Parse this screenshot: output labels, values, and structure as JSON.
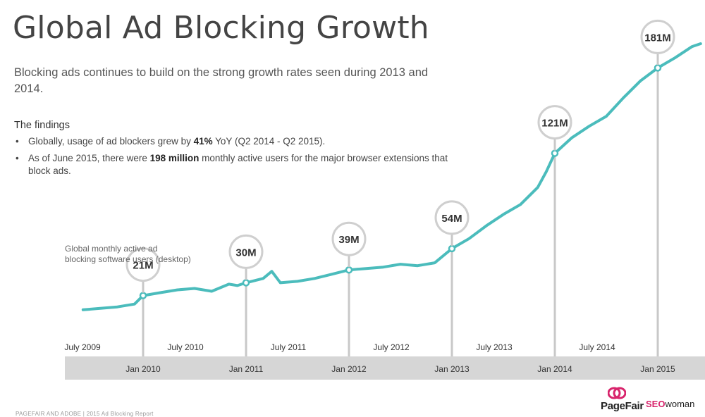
{
  "slide": {
    "title": "Global Ad Blocking Growth",
    "subtitle": "Blocking ads continues to build on the strong growth rates seen during 2013 and 2014.",
    "findings_heading": "The findings",
    "findings": [
      {
        "pre": "Globally, usage of ad blockers grew by ",
        "bold": "41%",
        "post": " YoY (Q2 2014 - Q2 2015)."
      },
      {
        "pre": "As of June 2015, there were ",
        "bold": "198 million",
        "post": " monthly active users for the major browser extensions that block ads."
      }
    ],
    "footer": "PAGEFAIR AND ADOBE | 2015 Ad Blocking Report",
    "logo_pagefair": "PageFair",
    "logo_seowoman_seo": "SEO",
    "logo_seowoman_rest": "woman"
  },
  "colors": {
    "line": "#4bbcbc",
    "axis_band": "#d6d6d6",
    "callout_border": "#cfcfcf",
    "drop_line": "#c8c8c8",
    "brand_red": "#d8246c"
  },
  "chart_data": {
    "type": "line",
    "annotation_text": [
      "Global monthly active ad",
      "blocking software users (desktop)"
    ],
    "x_range": [
      "2009-06",
      "2015-07"
    ],
    "x_upper_ticks": [
      "July 2009",
      "July 2010",
      "July 2011",
      "July 2012",
      "July 2013",
      "July 2014"
    ],
    "x_lower_ticks": [
      "Jan 2010",
      "Jan 2011",
      "Jan 2012",
      "Jan 2013",
      "Jan 2014",
      "Jan 2015"
    ],
    "y_unit": "millions",
    "y_range": [
      0,
      200
    ],
    "grid": false,
    "series": [
      {
        "points": [
          [
            "2009-06",
            11
          ],
          [
            "2009-08",
            12
          ],
          [
            "2009-10",
            13
          ],
          [
            "2009-12",
            15
          ],
          [
            "2010-01",
            21
          ],
          [
            "2010-03",
            23
          ],
          [
            "2010-05",
            25
          ],
          [
            "2010-07",
            26
          ],
          [
            "2010-09",
            24
          ],
          [
            "2010-11",
            29
          ],
          [
            "2010-12",
            28
          ],
          [
            "2011-01",
            30
          ],
          [
            "2011-03",
            33
          ],
          [
            "2011-04",
            38
          ],
          [
            "2011-05",
            30
          ],
          [
            "2011-07",
            31
          ],
          [
            "2011-09",
            33
          ],
          [
            "2011-11",
            36
          ],
          [
            "2012-01",
            39
          ],
          [
            "2012-03",
            40
          ],
          [
            "2012-05",
            41
          ],
          [
            "2012-07",
            43
          ],
          [
            "2012-09",
            42
          ],
          [
            "2012-11",
            44
          ],
          [
            "2013-01",
            54
          ],
          [
            "2013-03",
            61
          ],
          [
            "2013-05",
            70
          ],
          [
            "2013-07",
            78
          ],
          [
            "2013-09",
            85
          ],
          [
            "2013-11",
            97
          ],
          [
            "2013-12",
            108
          ],
          [
            "2014-01",
            121
          ],
          [
            "2014-03",
            132
          ],
          [
            "2014-05",
            140
          ],
          [
            "2014-07",
            147
          ],
          [
            "2014-09",
            160
          ],
          [
            "2014-11",
            172
          ],
          [
            "2015-01",
            181
          ],
          [
            "2015-03",
            188
          ],
          [
            "2015-05",
            196
          ],
          [
            "2015-06",
            198
          ]
        ]
      }
    ],
    "callouts": [
      {
        "x": "2010-01",
        "value": 21,
        "label": "21M"
      },
      {
        "x": "2011-01",
        "value": 30,
        "label": "30M"
      },
      {
        "x": "2012-01",
        "value": 39,
        "label": "39M"
      },
      {
        "x": "2013-01",
        "value": 54,
        "label": "54M"
      },
      {
        "x": "2014-01",
        "value": 121,
        "label": "121M"
      },
      {
        "x": "2015-01",
        "value": 181,
        "label": "181M"
      }
    ]
  }
}
